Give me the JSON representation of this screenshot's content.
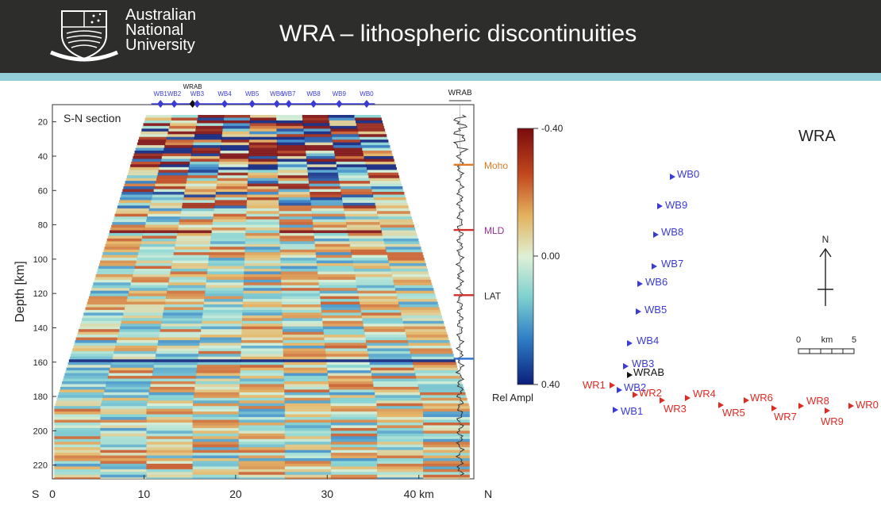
{
  "header": {
    "university_lines": [
      "Australian",
      "National",
      "University"
    ],
    "slide_title": "WRA – lithospheric discontinuities",
    "colors": {
      "band": "#2d2d2b",
      "stripe": "#93cdd8"
    }
  },
  "chart_data": [
    {
      "type": "heatmap",
      "title": "S-N section",
      "xlabel": "",
      "ylabel": "Depth [km]",
      "x_ticks": [
        "0",
        "10",
        "20",
        "30",
        "40 km"
      ],
      "x_ticks_values": [
        0,
        10,
        20,
        30,
        40
      ],
      "x_end_labels": {
        "left": "S",
        "right": "N"
      },
      "xlim": [
        0,
        46
      ],
      "y_ticks": [
        20,
        40,
        60,
        80,
        100,
        120,
        140,
        160,
        180,
        200,
        220
      ],
      "ylim": [
        10,
        228
      ],
      "stations": [
        {
          "name": "WB1",
          "x": 11.8
        },
        {
          "name": "WB2",
          "x": 13.3
        },
        {
          "name": "WRAB",
          "x": 15.3,
          "highlight": true
        },
        {
          "name": "WB3",
          "x": 15.8
        },
        {
          "name": "WB4",
          "x": 18.8
        },
        {
          "name": "WB5",
          "x": 21.8
        },
        {
          "name": "WB6",
          "x": 24.5
        },
        {
          "name": "WB7",
          "x": 25.8
        },
        {
          "name": "WB8",
          "x": 28.5
        },
        {
          "name": "WB9",
          "x": 31.3
        },
        {
          "name": "WB0",
          "x": 34.3
        }
      ],
      "trace_label": "WRAB",
      "discontinuities": [
        {
          "name": "Moho",
          "depth": 45,
          "color": "#e07b26"
        },
        {
          "name": "MLD",
          "depth": 83,
          "color": "#9b2f9b"
        },
        {
          "name": "LAT",
          "depth": 121,
          "color": "#2a2a2a"
        }
      ],
      "trace_marks": [
        {
          "depth": 45,
          "color": "#e07b26"
        },
        {
          "depth": 83,
          "color": "#d0302a"
        },
        {
          "depth": 121,
          "color": "#d0302a"
        },
        {
          "depth": 158,
          "color": "#2c6fd0"
        }
      ],
      "colorbar": {
        "label": "Rel Ampl",
        "ticks": [
          "-0.40",
          "0.00",
          "0.40"
        ],
        "range": [
          -0.4,
          0.4
        ]
      },
      "colors": {
        "neg": "#8a0f10",
        "pos": "#0b2a8c",
        "mid": "#cbe8d2"
      }
    },
    {
      "type": "scatter",
      "title": "WRA",
      "north_label": "N",
      "scale_label": "km",
      "scale_ticks": [
        "0",
        "5"
      ],
      "stations_b": [
        {
          "name": "WB0"
        },
        {
          "name": "WB9"
        },
        {
          "name": "WB8"
        },
        {
          "name": "WB7"
        },
        {
          "name": "WB6"
        },
        {
          "name": "WB5"
        },
        {
          "name": "WB4"
        },
        {
          "name": "WB3"
        },
        {
          "name": "WB2"
        },
        {
          "name": "WB1"
        }
      ],
      "station_ref": {
        "name": "WRAB"
      },
      "stations_r": [
        {
          "name": "WR1"
        },
        {
          "name": "WR2"
        },
        {
          "name": "WR3"
        },
        {
          "name": "WR4"
        },
        {
          "name": "WR5"
        },
        {
          "name": "WR6"
        },
        {
          "name": "WR7"
        },
        {
          "name": "WR8"
        },
        {
          "name": "WR9"
        },
        {
          "name": "WR0"
        }
      ],
      "colors": {
        "wb": "#3b3bd6",
        "wr": "#e02a22",
        "ref": "#111111"
      }
    }
  ]
}
